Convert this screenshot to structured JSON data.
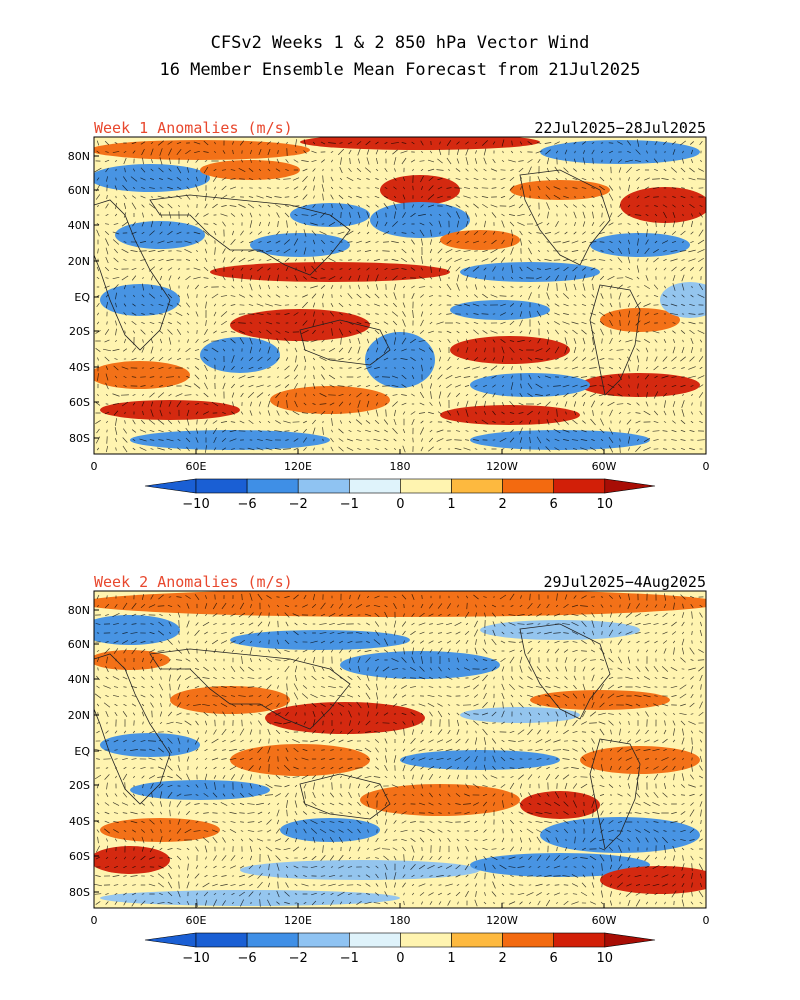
{
  "figure": {
    "title_line1": "CFSv2 Weeks 1 & 2 850 hPa Vector Wind",
    "title_line2": "16 Member Ensemble Mean Forecast from 21Jul2025"
  },
  "panels": [
    {
      "label": "Week 1 Anomalies (m/s)",
      "dates": "22Jul2025−28Jul2025",
      "lat_ticks": [
        "80N",
        "60N",
        "40N",
        "20N",
        "EQ",
        "20S",
        "40S",
        "60S",
        "80S"
      ],
      "lon_ticks": [
        "0",
        "60E",
        "120E",
        "180",
        "120W",
        "60W",
        "0"
      ]
    },
    {
      "label": "Week 2 Anomalies (m/s)",
      "dates": "29Jul2025−4Aug2025",
      "lat_ticks": [
        "80N",
        "60N",
        "40N",
        "20N",
        "EQ",
        "20S",
        "40S",
        "60S",
        "80S"
      ],
      "lon_ticks": [
        "0",
        "60E",
        "120E",
        "180",
        "120W",
        "60W",
        "0"
      ]
    }
  ],
  "colorbar": {
    "labels": [
      "−10",
      "−6",
      "−2",
      "−1",
      "0",
      "1",
      "2",
      "6",
      "10"
    ],
    "colors": [
      "#1a5fd4",
      "#3f8fe6",
      "#8fc3f2",
      "#dff3fb",
      "#fff4b0",
      "#fdb93f",
      "#f36a10",
      "#d21f08",
      "#a80d05"
    ]
  },
  "colors": {
    "label_red": "#e8482e",
    "grid": "#333333"
  }
}
